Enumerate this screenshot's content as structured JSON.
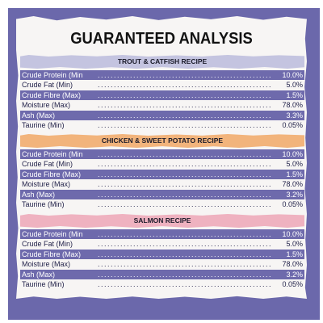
{
  "title": "GUARANTEED ANALYSIS",
  "colors": {
    "background": "#6b68ab",
    "paper": "#f7f5f4",
    "stripe": "#6e6aac",
    "trout_banner": "#c4c4e0",
    "chicken_banner": "#f2b47c",
    "salmon_banner": "#efb2c0"
  },
  "sections": [
    {
      "heading": "TROUT & CATFISH RECIPE",
      "rows": [
        {
          "name": "Crude Protein (Min",
          "value": "10.0%"
        },
        {
          "name": "Crude Fat (Min)",
          "value": "5.0%"
        },
        {
          "name": "Crude Fibre (Max)",
          "value": "1.5%"
        },
        {
          "name": "Moisture (Max)",
          "value": "78.0%"
        },
        {
          "name": "Ash (Max)",
          "value": "3.3%"
        },
        {
          "name": "Taurine (Min)",
          "value": "0.05%"
        }
      ]
    },
    {
      "heading": "CHICKEN & SWEET POTATO RECIPE",
      "rows": [
        {
          "name": "Crude Protein (Min",
          "value": "10.0%"
        },
        {
          "name": "Crude Fat (Min)",
          "value": "5.0%"
        },
        {
          "name": "Crude Fibre (Max)",
          "value": "1.5%"
        },
        {
          "name": "Moisture (Max)",
          "value": "78.0%"
        },
        {
          "name": "Ash (Max)",
          "value": "3.2%"
        },
        {
          "name": "Taurine (Min)",
          "value": "0.05%"
        }
      ]
    },
    {
      "heading": "SALMON RECIPE",
      "rows": [
        {
          "name": "Crude Protein (Min",
          "value": "10.0%"
        },
        {
          "name": "Crude Fat (Min)",
          "value": "5.0%"
        },
        {
          "name": "Crude Fibre (Max)",
          "value": "1.5%"
        },
        {
          "name": "Moisture (Max)",
          "value": "78.0%"
        },
        {
          "name": "Ash (Max)",
          "value": "3.2%"
        },
        {
          "name": "Taurine (Min)",
          "value": "0.05%"
        }
      ]
    }
  ]
}
